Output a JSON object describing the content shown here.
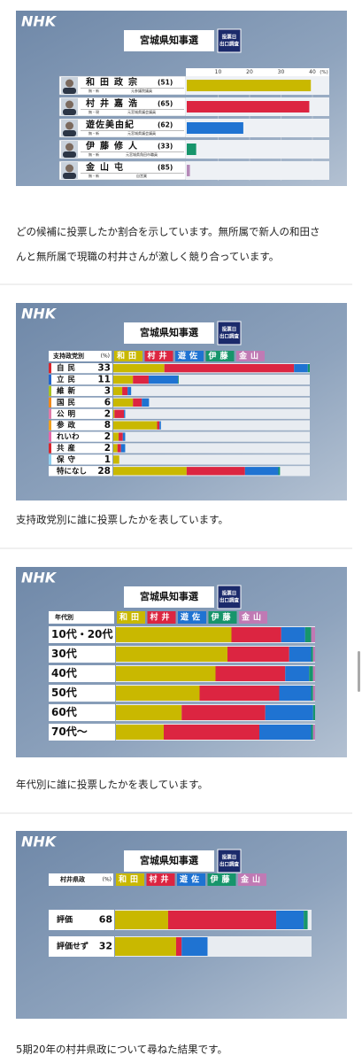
{
  "logo": "NHK",
  "chart_data": [
    {
      "type": "bar",
      "title": "宮城県知事選",
      "badge": [
        "投票日",
        "出口調査"
      ],
      "categories": [
        "和田政宗",
        "村井嘉浩",
        "遊佐美由紀",
        "伊藤修人",
        "金山屯"
      ],
      "ages": [
        "(51)",
        "(65)",
        "(62)",
        "(33)",
        "(85)"
      ],
      "status": [
        "無・新",
        "無・現",
        "無・新",
        "無・新",
        "無・新"
      ],
      "careers": [
        "元参議院議員",
        "元宮城県議会議員",
        "元宮城県議会議員",
        "元宮城県角田市職員",
        "自営業"
      ],
      "values": [
        39.5,
        39,
        18,
        3,
        1
      ],
      "colors": [
        "#c9b800",
        "#dc2541",
        "#1f73d2",
        "#17956b",
        "#b58ab8"
      ],
      "xlim": [
        0,
        40
      ],
      "xticks": [
        10,
        20,
        30,
        40
      ],
      "xunit": "(%)"
    },
    {
      "type": "stacked_bar",
      "title": "宮城県知事選",
      "badge": [
        "投票日",
        "出口調査"
      ],
      "header": "支持政党別",
      "unit": "(%)",
      "categories": [
        "自民",
        "立民",
        "維新",
        "国民",
        "公明",
        "参政",
        "れいわ",
        "共産",
        "保守",
        "特になし"
      ],
      "values": [
        33,
        11,
        3,
        6,
        2,
        8,
        2,
        2,
        1,
        28
      ],
      "series": [
        {
          "name": "和田",
          "color": "#c9b800",
          "values": [
            26,
            30,
            50,
            55,
            10,
            92,
            45,
            35,
            100,
            44
          ]
        },
        {
          "name": "村井",
          "color": "#dc2541",
          "values": [
            66,
            24,
            30,
            25,
            80,
            5,
            35,
            30,
            0,
            35
          ]
        },
        {
          "name": "遊佐",
          "color": "#1f73d2",
          "values": [
            7,
            45,
            20,
            20,
            10,
            3,
            20,
            35,
            0,
            20
          ]
        },
        {
          "name": "伊藤",
          "color": "#17956b",
          "values": [
            1,
            1,
            0,
            0,
            0,
            0,
            0,
            0,
            0,
            1
          ]
        },
        {
          "name": "金山",
          "color": "#c07ab4",
          "values": [
            0,
            0,
            0,
            0,
            0,
            0,
            0,
            0,
            0,
            0
          ]
        }
      ]
    },
    {
      "type": "stacked_bar",
      "title": "宮城県知事選",
      "badge": [
        "投票日",
        "出口調査"
      ],
      "header": "年代別",
      "categories": [
        "10代・20代",
        "30代",
        "40代",
        "50代",
        "60代",
        "70代～"
      ],
      "series": [
        {
          "name": "和田",
          "color": "#c9b800",
          "values": [
            58,
            56,
            50,
            42,
            33,
            24
          ]
        },
        {
          "name": "村井",
          "color": "#dc2541",
          "values": [
            25,
            31,
            35,
            40,
            42,
            48
          ]
        },
        {
          "name": "遊佐",
          "color": "#1f73d2",
          "values": [
            12,
            11,
            12,
            16,
            24,
            26
          ]
        },
        {
          "name": "伊藤",
          "color": "#17956b",
          "values": [
            3,
            1,
            2,
            1,
            1,
            1
          ]
        },
        {
          "name": "金山",
          "color": "#c07ab4",
          "values": [
            2,
            1,
            1,
            1,
            0,
            1
          ]
        }
      ]
    },
    {
      "type": "stacked_bar",
      "title": "宮城県知事選",
      "badge": [
        "投票日",
        "出口調査"
      ],
      "header": "村井県政",
      "unit": "(%)",
      "categories": [
        "評価",
        "評価せず"
      ],
      "values": [
        68,
        32
      ],
      "series": [
        {
          "name": "和田",
          "color": "#c9b800",
          "values": [
            27,
            66
          ]
        },
        {
          "name": "村井",
          "color": "#dc2541",
          "values": [
            55,
            6
          ]
        },
        {
          "name": "遊佐",
          "color": "#1f73d2",
          "values": [
            14,
            28
          ]
        },
        {
          "name": "伊藤",
          "color": "#17956b",
          "values": [
            2,
            0
          ]
        },
        {
          "name": "金山",
          "color": "#c07ab4",
          "values": [
            0,
            0
          ]
        }
      ]
    }
  ],
  "captions": [
    [
      "どの候補に投票したか割合を示しています。無所属で新人の和田さ",
      "んと無所属で現職の村井さんが激しく競り合っています。"
    ],
    [
      "支持政党別に誰に投票したかを表しています。"
    ],
    [
      "年代別に誰に投票したかを表しています。"
    ],
    [
      "5期20年の村井県政について尋ねた結果です。"
    ]
  ]
}
